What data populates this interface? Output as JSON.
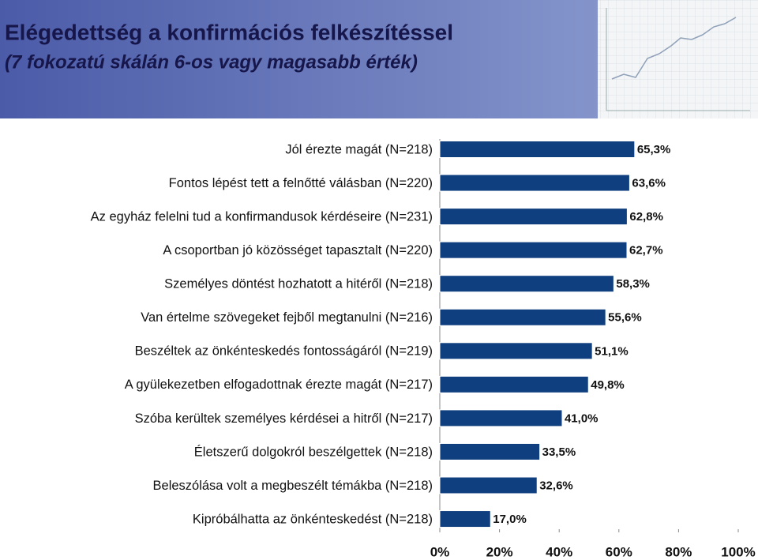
{
  "chart_data": {
    "type": "bar",
    "orientation": "horizontal",
    "title": "Elégedettség a konfirmációs felkészítéssel",
    "subtitle": "(7 fokozatú skálán 6-os vagy magasabb érték)",
    "categories": [
      "Jól érezte magát (N=218)",
      "Fontos lépést tett a felnőtté válásban (N=220)",
      "Az egyház felelni tud a konfirmandusok kérdéseire (N=231)",
      "A csoportban jó közösséget tapasztalt (N=220)",
      "Személyes döntést hozhatott a hitéről (N=218)",
      "Van értelme szövegeket fejből megtanulni (N=216)",
      "Beszéltek az önkénteskedés fontosságáról (N=219)",
      "A gyülekezetben elfogadottnak érezte magát (N=217)",
      "Szóba kerültek személyes kérdései a hitről (N=217)",
      "Életszerű dolgokról beszélgettek (N=218)",
      "Beleszólása volt a megbeszélt témákba (N=218)",
      "Kipróbálhatta az önkénteskedést (N=218)"
    ],
    "values": [
      65.3,
      63.6,
      62.8,
      62.7,
      58.3,
      55.6,
      51.1,
      49.8,
      41.0,
      33.5,
      32.6,
      17.0
    ],
    "value_labels": [
      "65,3%",
      "63,6%",
      "62,8%",
      "62,7%",
      "58,3%",
      "55,6%",
      "51,1%",
      "49,8%",
      "41,0%",
      "33,5%",
      "32,6%",
      "17,0%"
    ],
    "color": "#103f80",
    "xlim": [
      0,
      100
    ],
    "xticks": [
      {
        "value": 0,
        "label": "0%"
      },
      {
        "value": 20,
        "label": "20%"
      },
      {
        "value": 40,
        "label": "40%"
      },
      {
        "value": 60,
        "label": "60%"
      },
      {
        "value": 80,
        "label": "80%"
      },
      {
        "value": 100,
        "label": "100%"
      }
    ],
    "grid": false
  }
}
